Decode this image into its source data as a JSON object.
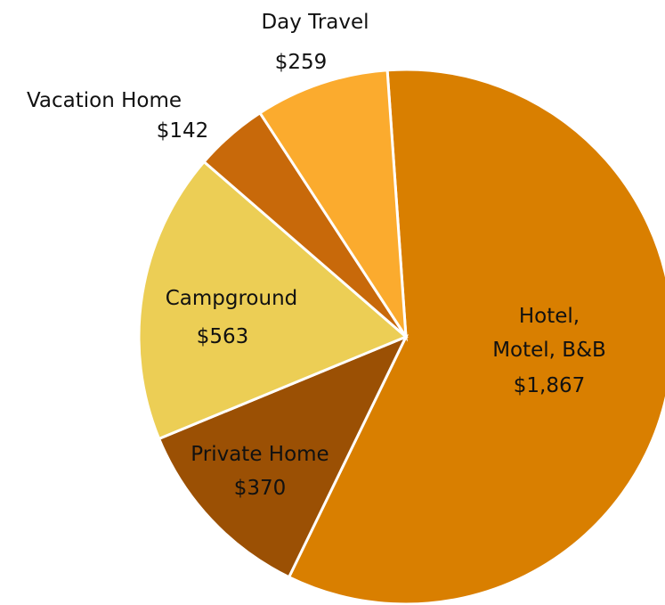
{
  "chart_data": {
    "type": "pie",
    "categories": [
      "Hotel,\nMotel, B&B",
      "Private Home",
      "Campground",
      "Vacation Home",
      "Day Travel"
    ],
    "values": [
      1867,
      370,
      563,
      142,
      259
    ],
    "value_labels": [
      "$1,867",
      "$370",
      "$563",
      "$142",
      "$259"
    ],
    "colors": [
      "#d97f00",
      "#9b5004",
      "#ecce55",
      "#c8690a",
      "#fbab2e"
    ]
  }
}
